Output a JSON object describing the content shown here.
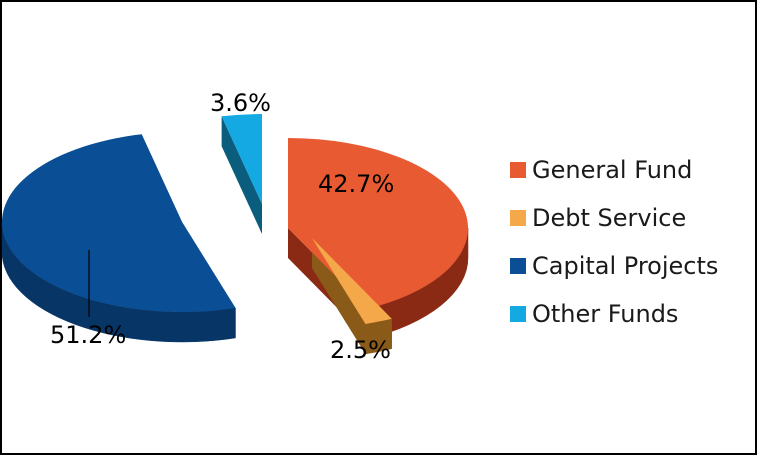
{
  "chart_data": {
    "type": "pie",
    "title": "",
    "legend_position": "right",
    "slices": [
      {
        "label": "General Fund",
        "value": 42.7,
        "value_label": "42.7%",
        "color": "#E85A32",
        "side_color": "#8B2A14"
      },
      {
        "label": "Debt Service",
        "value": 2.5,
        "value_label": "2.5%",
        "color": "#F5A84A",
        "side_color": "#8A5A18"
      },
      {
        "label": "Capital Projects",
        "value": 51.2,
        "value_label": "51.2%",
        "color": "#0A4F95",
        "side_color": "#063566"
      },
      {
        "label": "Other Funds",
        "value": 3.6,
        "value_label": "3.6%",
        "color": "#14A9E2",
        "side_color": "#0B5D7E"
      }
    ]
  }
}
